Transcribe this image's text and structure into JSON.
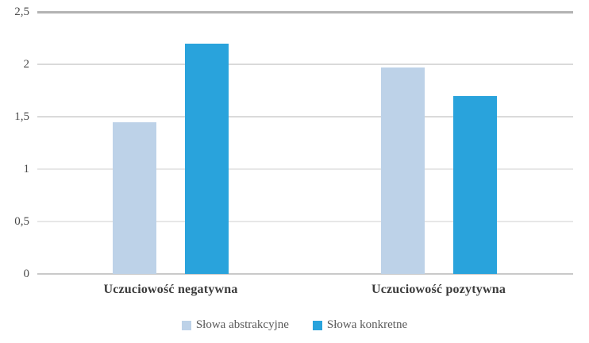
{
  "chart_data": {
    "type": "bar",
    "title": "",
    "categories": [
      "Uczuciowość negatywna",
      "Uczuciowość pozytywna"
    ],
    "series": [
      {
        "name": "Słowa abstrakcyjne",
        "color": "#BDD2E8",
        "values": [
          1.45,
          1.97
        ]
      },
      {
        "name": "Słowa konkretne",
        "color": "#29A3DC",
        "values": [
          2.2,
          1.7
        ]
      }
    ],
    "y_axis": {
      "min": 0,
      "max": 2.5,
      "tick_step": 0.5,
      "tick_labels": [
        "0",
        "0,5",
        "1",
        "1,5",
        "2",
        "2,5"
      ],
      "decimal_separator": ","
    },
    "x_axis_label": "",
    "y_axis_label": "",
    "grid": true,
    "legend_position": "bottom",
    "background_color": "#FFFFFF",
    "gridline_color": "#DEDEDE"
  }
}
